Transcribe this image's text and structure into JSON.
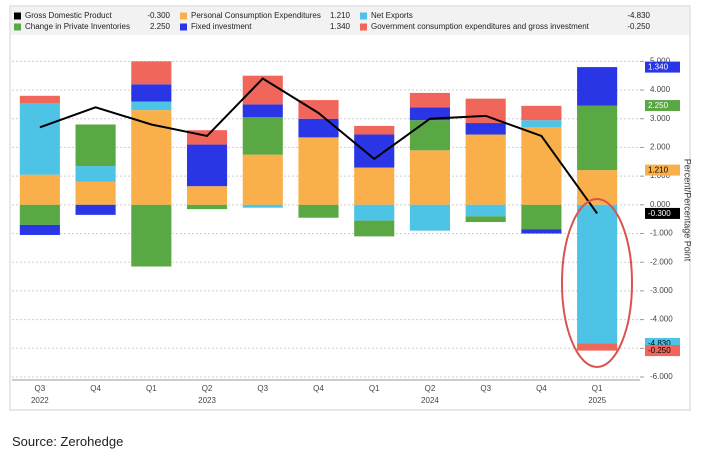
{
  "chart_data": {
    "type": "bar",
    "stacked": true,
    "grid": true,
    "source": "Source: Zerohedge",
    "y_label": "Percent/Percentage Point",
    "categories": [
      "Q3",
      "Q4",
      "Q1",
      "Q2",
      "Q3",
      "Q4",
      "Q1",
      "Q2",
      "Q3",
      "Q4",
      "Q1"
    ],
    "year_labels": [
      "2022",
      null,
      null,
      "2023",
      null,
      null,
      null,
      "2024",
      null,
      null,
      "2025"
    ],
    "ylim": [
      -6,
      5.5
    ],
    "yticks": [
      {
        "value": 5,
        "label": "5.000"
      },
      {
        "value": 4,
        "label": "4.000"
      },
      {
        "value": 3,
        "label": "3.000"
      },
      {
        "value": 2,
        "label": "2.000"
      },
      {
        "value": 1,
        "label": "1.000"
      },
      {
        "value": 0,
        "label": "0.000"
      },
      {
        "value": -1,
        "label": "-1.000"
      },
      {
        "value": -2,
        "label": "-2.000"
      },
      {
        "value": -3,
        "label": "-3.000"
      },
      {
        "value": -4,
        "label": "-4.000"
      },
      {
        "value": -5,
        "label": "-5.000"
      },
      {
        "value": -6,
        "label": "-6.000"
      }
    ],
    "series": [
      {
        "name": "Gross Domestic Product",
        "type": "line",
        "color": "#000000",
        "values": [
          2.7,
          3.4,
          2.8,
          2.4,
          4.4,
          3.2,
          1.6,
          3.0,
          3.1,
          2.4,
          -0.3
        ],
        "value_labels": [
          null,
          null,
          null,
          null,
          null,
          null,
          null,
          null,
          null,
          null,
          "-0.300"
        ]
      },
      {
        "name": "Personal Consumption Expenditures",
        "type": "bar",
        "color": "#f9b04a",
        "values": [
          1.05,
          0.8,
          3.3,
          0.65,
          1.75,
          2.35,
          1.3,
          1.9,
          2.45,
          2.7,
          1.21
        ],
        "value_labels": [
          null,
          null,
          null,
          null,
          null,
          null,
          null,
          null,
          null,
          null,
          "1.210"
        ]
      },
      {
        "name": "Net Exports",
        "type": "bar",
        "color": "#4dc3e6",
        "values": [
          2.5,
          0.55,
          0.3,
          0,
          -0.1,
          0,
          -0.55,
          -0.9,
          -0.4,
          0.25,
          -4.83
        ],
        "value_labels": [
          null,
          null,
          null,
          null,
          null,
          null,
          null,
          null,
          null,
          null,
          "-4.830"
        ]
      },
      {
        "name": "Change in Private Inventories",
        "type": "bar",
        "color": "#5aa844",
        "values": [
          -0.7,
          1.45,
          -2.15,
          -0.15,
          1.3,
          -0.45,
          -0.55,
          1.05,
          -0.2,
          -0.85,
          2.25
        ],
        "value_labels": [
          null,
          null,
          null,
          null,
          null,
          null,
          null,
          null,
          null,
          null,
          "2.250"
        ]
      },
      {
        "name": "Fixed investment",
        "type": "bar",
        "color": "#2a36e6",
        "values": [
          -0.35,
          -0.35,
          0.6,
          1.45,
          0.45,
          0.65,
          1.15,
          0.45,
          0.4,
          -0.15,
          1.34
        ],
        "value_labels": [
          null,
          null,
          null,
          null,
          null,
          null,
          null,
          null,
          null,
          null,
          "1.340"
        ]
      },
      {
        "name": "Government consumption expenditures and gross investment",
        "type": "bar",
        "color": "#f0665a",
        "values": [
          0.25,
          0,
          0.8,
          0.5,
          1.0,
          0.65,
          0.3,
          0.5,
          0.85,
          0.5,
          -0.25
        ],
        "value_labels": [
          null,
          null,
          null,
          null,
          null,
          null,
          null,
          null,
          null,
          null,
          "-0.250"
        ]
      }
    ]
  }
}
